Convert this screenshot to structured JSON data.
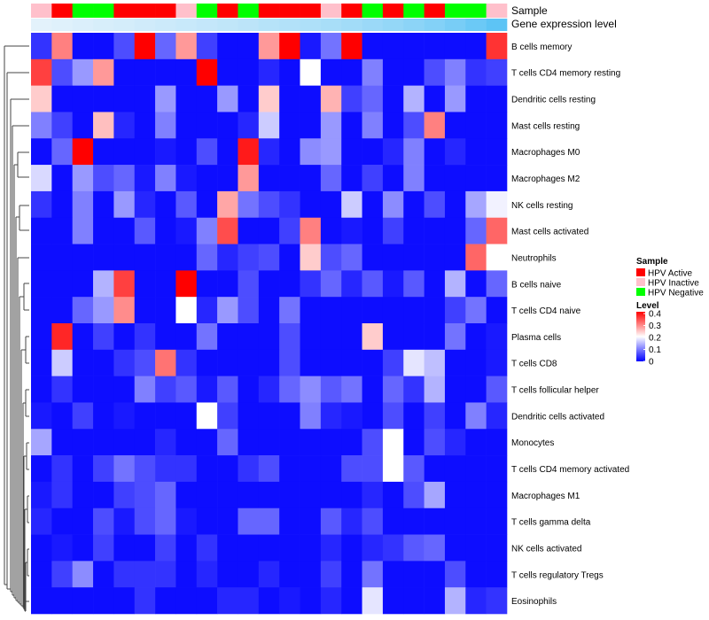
{
  "chart_data": {
    "type": "heatmap",
    "title": "",
    "row_labels": [
      "B cells memory",
      "T cells CD4 memory resting",
      "Dendritic cells resting",
      "Mast cells resting",
      "Macrophages M0",
      "Macrophages M2",
      "NK cells resting",
      "Mast cells activated",
      "Neutrophils",
      "B cells naive",
      "T cells CD4 naive",
      "Plasma cells",
      "T cells CD8",
      "T cells follicular helper",
      "Dendritic cells activated",
      "Monocytes",
      "T cells CD4 memory activated",
      "Macrophages M1",
      "T cells gamma delta",
      "NK cells activated",
      "T cells regulatory  Tregs",
      "Eosinophils"
    ],
    "annotation_labels": {
      "sample": "Sample",
      "gene_expression": "Gene expression level"
    },
    "sample_groups": [
      "HPV Inactive",
      "HPV Active",
      "HPV Negative",
      "HPV Negative",
      "HPV Active",
      "HPV Active",
      "HPV Active",
      "HPV Inactive",
      "HPV Negative",
      "HPV Active",
      "HPV Negative",
      "HPV Active",
      "HPV Active",
      "HPV Active",
      "HPV Inactive",
      "HPV Active",
      "HPV Negative",
      "HPV Active",
      "HPV Negative",
      "HPV Active",
      "HPV Negative",
      "HPV Negative",
      "HPV Inactive"
    ],
    "gene_expression": [
      0.02,
      0.05,
      0.08,
      0.11,
      0.13,
      0.16,
      0.19,
      0.22,
      0.25,
      0.28,
      0.31,
      0.35,
      0.38,
      0.41,
      0.45,
      0.5,
      0.55,
      0.6,
      0.66,
      0.72,
      0.8,
      0.9,
      1.0
    ],
    "values": [
      [
        0.04,
        0.3,
        0.01,
        0.01,
        0.06,
        0.4,
        0.08,
        0.28,
        0.05,
        0.01,
        0.01,
        0.28,
        0.4,
        0.02,
        0.09,
        0.4,
        0.01,
        0.01,
        0.01,
        0.01,
        0.01,
        0.01,
        0.36
      ],
      [
        0.35,
        0.06,
        0.12,
        0.28,
        0.01,
        0.01,
        0.01,
        0.01,
        0.4,
        0.01,
        0.01,
        0.03,
        0.01,
        0.2,
        0.01,
        0.01,
        0.1,
        0.01,
        0.01,
        0.06,
        0.1,
        0.04,
        0.05
      ],
      [
        0.24,
        0.01,
        0.01,
        0.01,
        0.01,
        0.01,
        0.12,
        0.01,
        0.01,
        0.12,
        0.01,
        0.24,
        0.01,
        0.01,
        0.26,
        0.05,
        0.08,
        0.01,
        0.14,
        0.01,
        0.12,
        0.01,
        0.01
      ],
      [
        0.1,
        0.05,
        0.01,
        0.25,
        0.03,
        0.01,
        0.1,
        0.01,
        0.01,
        0.01,
        0.03,
        0.16,
        0.01,
        0.01,
        0.12,
        0.01,
        0.1,
        0.01,
        0.06,
        0.3,
        0.01,
        0.01,
        0.01
      ],
      [
        0.01,
        0.08,
        0.4,
        0.01,
        0.01,
        0.01,
        0.02,
        0.01,
        0.06,
        0.01,
        0.38,
        0.03,
        0.01,
        0.11,
        0.12,
        0.01,
        0.01,
        0.03,
        0.1,
        0.01,
        0.03,
        0.01,
        0.01
      ],
      [
        0.17,
        0.01,
        0.12,
        0.06,
        0.08,
        0.02,
        0.1,
        0.02,
        0.01,
        0.01,
        0.28,
        0.01,
        0.01,
        0.01,
        0.08,
        0.01,
        0.05,
        0.01,
        0.1,
        0.01,
        0.01,
        0.01,
        0.01
      ],
      [
        0.04,
        0.01,
        0.1,
        0.01,
        0.12,
        0.03,
        0.01,
        0.07,
        0.01,
        0.27,
        0.09,
        0.06,
        0.04,
        0.01,
        0.01,
        0.16,
        0.01,
        0.11,
        0.01,
        0.06,
        0.01,
        0.13,
        0.19
      ],
      [
        0.01,
        0.01,
        0.1,
        0.01,
        0.01,
        0.07,
        0.01,
        0.02,
        0.1,
        0.34,
        0.01,
        0.01,
        0.05,
        0.3,
        0.01,
        0.02,
        0.01,
        0.05,
        0.01,
        0.01,
        0.01,
        0.08,
        0.32
      ],
      [
        0.01,
        0.01,
        0.01,
        0.01,
        0.01,
        0.01,
        0.01,
        0.01,
        0.08,
        0.03,
        0.05,
        0.06,
        0.01,
        0.24,
        0.06,
        0.08,
        0.01,
        0.01,
        0.01,
        0.01,
        0.01,
        0.32,
        0.2
      ],
      [
        0.01,
        0.01,
        0.01,
        0.14,
        0.35,
        0.01,
        0.01,
        0.4,
        0.01,
        0.01,
        0.06,
        0.01,
        0.01,
        0.04,
        0.08,
        0.03,
        0.07,
        0.02,
        0.07,
        0.01,
        0.14,
        0.01,
        0.08
      ],
      [
        0.01,
        0.01,
        0.08,
        0.12,
        0.29,
        0.01,
        0.01,
        0.2,
        0.03,
        0.12,
        0.06,
        0.01,
        0.09,
        0.01,
        0.01,
        0.01,
        0.01,
        0.01,
        0.01,
        0.01,
        0.05,
        0.09,
        0.01
      ],
      [
        0.01,
        0.37,
        0.01,
        0.05,
        0.01,
        0.04,
        0.01,
        0.01,
        0.09,
        0.01,
        0.01,
        0.01,
        0.06,
        0.01,
        0.01,
        0.01,
        0.24,
        0.01,
        0.01,
        0.01,
        0.09,
        0.01,
        0.02
      ],
      [
        0.01,
        0.16,
        0.01,
        0.01,
        0.04,
        0.06,
        0.31,
        0.04,
        0.01,
        0.01,
        0.01,
        0.01,
        0.06,
        0.01,
        0.01,
        0.01,
        0.01,
        0.05,
        0.18,
        0.15,
        0.01,
        0.01,
        0.02
      ],
      [
        0.01,
        0.04,
        0.01,
        0.01,
        0.01,
        0.1,
        0.05,
        0.07,
        0.02,
        0.07,
        0.01,
        0.03,
        0.08,
        0.11,
        0.07,
        0.09,
        0.01,
        0.08,
        0.04,
        0.14,
        0.01,
        0.01,
        0.07
      ],
      [
        0.02,
        0.01,
        0.05,
        0.01,
        0.02,
        0.01,
        0.01,
        0.01,
        0.2,
        0.05,
        0.01,
        0.01,
        0.01,
        0.1,
        0.03,
        0.02,
        0.01,
        0.06,
        0.01,
        0.05,
        0.01,
        0.1,
        0.03
      ],
      [
        0.13,
        0.01,
        0.01,
        0.01,
        0.01,
        0.01,
        0.03,
        0.01,
        0.01,
        0.08,
        0.01,
        0.01,
        0.01,
        0.01,
        0.01,
        0.01,
        0.06,
        0.2,
        0.01,
        0.06,
        0.03,
        0.01,
        0.01
      ],
      [
        0.01,
        0.04,
        0.01,
        0.05,
        0.09,
        0.06,
        0.04,
        0.04,
        0.01,
        0.01,
        0.04,
        0.06,
        0.01,
        0.01,
        0.01,
        0.06,
        0.06,
        0.2,
        0.07,
        0.01,
        0.01,
        0.01,
        0.01
      ],
      [
        0.02,
        0.04,
        0.01,
        0.01,
        0.05,
        0.06,
        0.08,
        0.01,
        0.01,
        0.01,
        0.01,
        0.01,
        0.01,
        0.01,
        0.01,
        0.01,
        0.03,
        0.01,
        0.06,
        0.13,
        0.01,
        0.01,
        0.01
      ],
      [
        0.03,
        0.01,
        0.01,
        0.06,
        0.02,
        0.06,
        0.08,
        0.02,
        0.01,
        0.01,
        0.08,
        0.08,
        0.01,
        0.01,
        0.07,
        0.03,
        0.06,
        0.01,
        0.01,
        0.01,
        0.01,
        0.01,
        0.01
      ],
      [
        0.01,
        0.02,
        0.01,
        0.05,
        0.01,
        0.01,
        0.05,
        0.01,
        0.04,
        0.01,
        0.01,
        0.01,
        0.01,
        0.01,
        0.03,
        0.01,
        0.03,
        0.04,
        0.07,
        0.08,
        0.01,
        0.01,
        0.01
      ],
      [
        0.01,
        0.05,
        0.11,
        0.01,
        0.04,
        0.04,
        0.04,
        0.01,
        0.03,
        0.01,
        0.01,
        0.03,
        0.01,
        0.01,
        0.05,
        0.01,
        0.09,
        0.01,
        0.01,
        0.01,
        0.06,
        0.01,
        0.01
      ],
      [
        0.01,
        0.01,
        0.01,
        0.01,
        0.01,
        0.04,
        0.01,
        0.01,
        0.01,
        0.03,
        0.03,
        0.01,
        0.02,
        0.01,
        0.03,
        0.01,
        0.18,
        0.01,
        0.01,
        0.01,
        0.14,
        0.03,
        0.04
      ]
    ],
    "legend": {
      "sample_title": "Sample",
      "sample_entries": [
        {
          "label": "HPV Active",
          "color": "#ff0000"
        },
        {
          "label": "HPV Inactive",
          "color": "#ffc0cb"
        },
        {
          "label": "HPV Negative",
          "color": "#00ff00"
        }
      ],
      "level_title": "Level",
      "level_ticks": [
        "0.4",
        "0.3",
        "0.2",
        "0.1",
        "0"
      ],
      "level_range": [
        0,
        0.4
      ],
      "placement": "right"
    },
    "colors": {
      "low": "#0000ff",
      "mid": "#ffffff",
      "high": "#ff0000",
      "expr_low": "#e6f3fb",
      "expr_high": "#5dc4f5"
    }
  }
}
